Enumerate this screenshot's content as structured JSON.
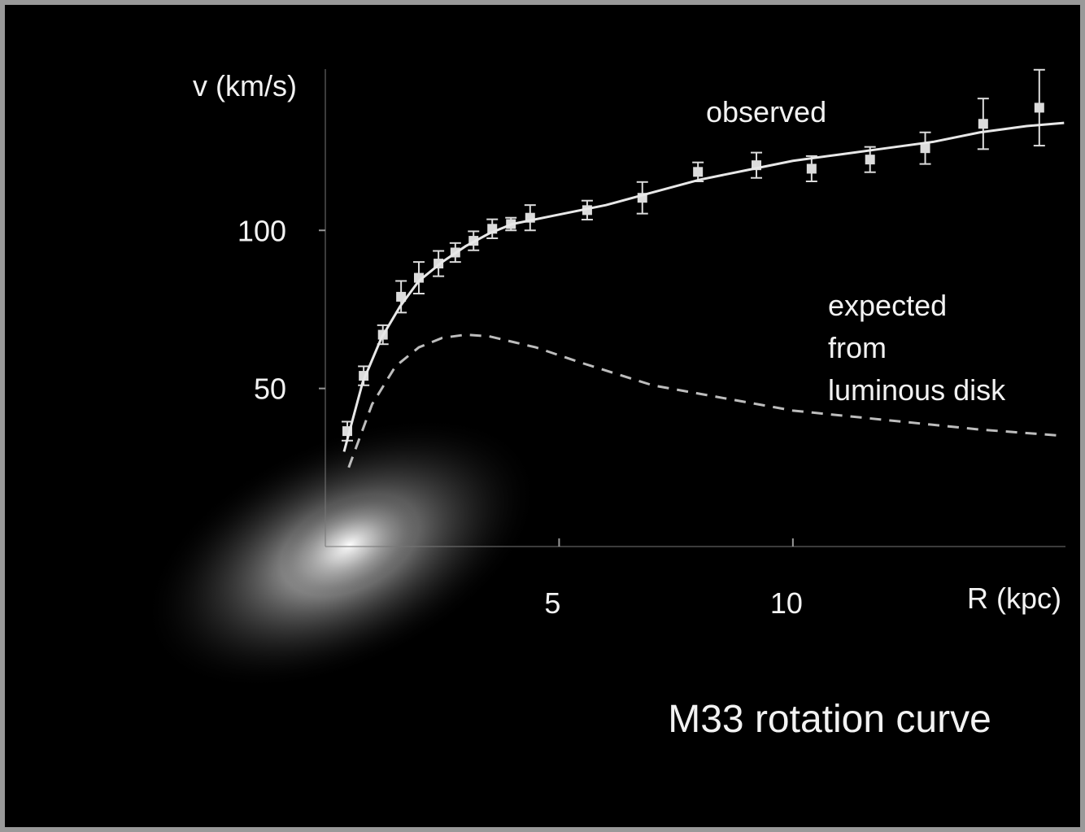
{
  "chart_data": {
    "type": "scatter",
    "title": "M33 rotation curve",
    "x_label": "R (kpc)",
    "y_label": "v (km/s)",
    "xlim": [
      0,
      15.83
    ],
    "ylim": [
      0,
      151
    ],
    "xticks": [
      5,
      10
    ],
    "yticks": [
      50,
      100
    ],
    "series": [
      {
        "name": "observed",
        "style": "points",
        "color": "#dcdcdc",
        "x": [
          0.47,
          0.82,
          1.23,
          1.62,
          2.0,
          2.42,
          2.78,
          3.17,
          3.57,
          3.97,
          4.38,
          5.6,
          6.78,
          7.97,
          9.22,
          10.4,
          11.65,
          12.83,
          14.07,
          15.27
        ],
        "values": [
          36.5,
          54,
          67,
          79,
          85,
          89.5,
          93,
          96.7,
          100.5,
          102,
          104,
          106.4,
          110.3,
          118.5,
          120.6,
          119.5,
          122.4,
          126,
          133.7,
          138.8
        ],
        "errors": [
          3,
          3,
          3,
          5,
          5,
          4,
          3,
          3,
          3,
          2,
          4,
          3,
          5,
          3,
          4,
          4,
          4,
          5,
          8,
          12
        ]
      },
      {
        "style": "line",
        "color": "#e8e8e8",
        "x": [
          0.4,
          0.8,
          1.2,
          1.6,
          2,
          2.5,
          3,
          3.5,
          4,
          5,
          6,
          7,
          8,
          9,
          10,
          11,
          12,
          13,
          14,
          15,
          15.8
        ],
        "values": [
          30,
          52,
          66,
          76,
          84,
          90,
          95,
          99,
          102,
          105,
          108,
          112,
          116,
          119,
          122,
          124,
          126,
          128,
          131,
          133,
          134
        ]
      },
      {
        "name": "expected\nfrom\nluminous disk",
        "style": "dashed",
        "color": "#bdbdbd",
        "x": [
          0.5,
          1,
          1.5,
          2,
          2.5,
          3,
          3.5,
          4.5,
          5.5,
          7,
          8.5,
          10,
          12,
          14,
          15.8
        ],
        "values": [
          25,
          45,
          57,
          63,
          66,
          67,
          66.5,
          63,
          58,
          51,
          47,
          43,
          40,
          37,
          35
        ]
      }
    ]
  }
}
